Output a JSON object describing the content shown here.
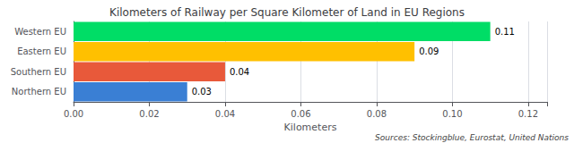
{
  "chart_data": {
    "type": "bar",
    "orientation": "horizontal",
    "title": "Kilometers of Railway per Square Kilometer of Land in EU Regions",
    "categories": [
      "Northern EU",
      "Southern EU",
      "Eastern EU",
      "Western EU"
    ],
    "values": [
      0.03,
      0.04,
      0.09,
      0.11
    ],
    "colors": [
      "#3A7FD4",
      "#E8593A",
      "#FFC000",
      "#00DD66"
    ],
    "xlabel": "Kilometers",
    "xlim": [
      0,
      0.125
    ],
    "xticks": [
      {
        "value": 0.0,
        "label": "0.00"
      },
      {
        "value": 0.02,
        "label": "0.02"
      },
      {
        "value": 0.04,
        "label": "0.04"
      },
      {
        "value": 0.06,
        "label": "0.06"
      },
      {
        "value": 0.08,
        "label": "0.08"
      },
      {
        "value": 0.1,
        "label": "0.10"
      },
      {
        "value": 0.12,
        "label": "0.12"
      }
    ],
    "grid": true,
    "data_labels": true,
    "annotations": [
      "Sources: Stockingblue, Eurostat, United Nations"
    ]
  }
}
